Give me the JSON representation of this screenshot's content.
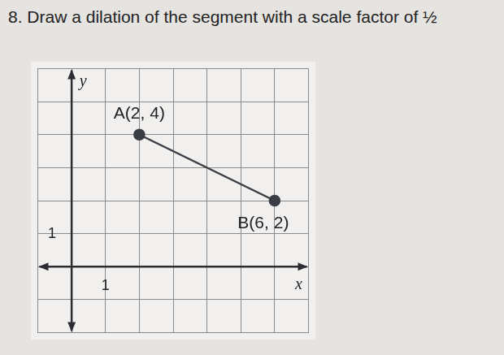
{
  "chart_data": {
    "type": "line",
    "title": "8. Draw a dilation of the segment with a scale factor of ½",
    "x_label": "x",
    "y_label": "y",
    "x": [
      2,
      6
    ],
    "values": [
      4,
      2
    ],
    "point_labels": [
      "A(2, 4)",
      "B(6, 2)"
    ],
    "color": "#3a3d45",
    "marker": "circle",
    "line_style": "solid",
    "xlim": [
      -1,
      7
    ],
    "xticks": [
      {
        "value": -1,
        "label": null
      },
      {
        "value": 0,
        "label": null
      },
      1,
      {
        "value": 2,
        "label": null
      },
      {
        "value": 3,
        "label": null
      },
      {
        "value": 4,
        "label": null
      },
      {
        "value": 5,
        "label": null
      },
      {
        "value": 6,
        "label": null
      },
      {
        "value": 7,
        "label": null
      }
    ],
    "ylim": [
      -2,
      6
    ],
    "yticks": [
      {
        "value": -2,
        "label": null
      },
      {
        "value": -1,
        "label": null
      },
      {
        "value": 0,
        "label": null
      },
      1,
      {
        "value": 2,
        "label": null
      },
      {
        "value": 3,
        "label": null
      },
      {
        "value": 4,
        "label": null
      },
      {
        "value": 5,
        "label": null
      },
      {
        "value": 6,
        "label": null
      }
    ],
    "grid": true
  }
}
